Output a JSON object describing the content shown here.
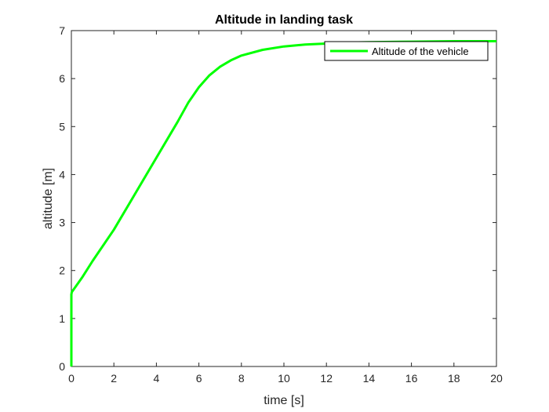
{
  "chart_data": {
    "type": "line",
    "title": "Altitude in landing task",
    "xlabel": "time [s]",
    "ylabel": "altitude [m]",
    "xlim": [
      0,
      20
    ],
    "ylim": [
      0,
      7
    ],
    "xticks": [
      0,
      2,
      4,
      6,
      8,
      10,
      12,
      14,
      16,
      18,
      20
    ],
    "yticks": [
      0,
      1,
      2,
      3,
      4,
      5,
      6,
      7
    ],
    "xtick_labels": [
      "0",
      "2",
      "4",
      "6",
      "8",
      "10",
      "12",
      "14",
      "16",
      "18",
      "20"
    ],
    "ytick_labels": [
      "0",
      "1",
      "2",
      "3",
      "4",
      "5",
      "6",
      "7"
    ],
    "grid": false,
    "legend_position": "top-right",
    "series": [
      {
        "name": "Altitude of the vehicle",
        "color": "#00ff00",
        "x": [
          0,
          0,
          0.02,
          0.5,
          1,
          2,
          3,
          4,
          5,
          5.5,
          6,
          6.5,
          7,
          7.5,
          8,
          9,
          10,
          11,
          12,
          13,
          14,
          16,
          18,
          20
        ],
        "y": [
          0,
          1.5,
          1.55,
          1.85,
          2.2,
          2.85,
          3.6,
          4.35,
          5.1,
          5.5,
          5.82,
          6.07,
          6.25,
          6.38,
          6.48,
          6.6,
          6.67,
          6.71,
          6.73,
          6.75,
          6.76,
          6.77,
          6.78,
          6.78
        ]
      }
    ]
  }
}
